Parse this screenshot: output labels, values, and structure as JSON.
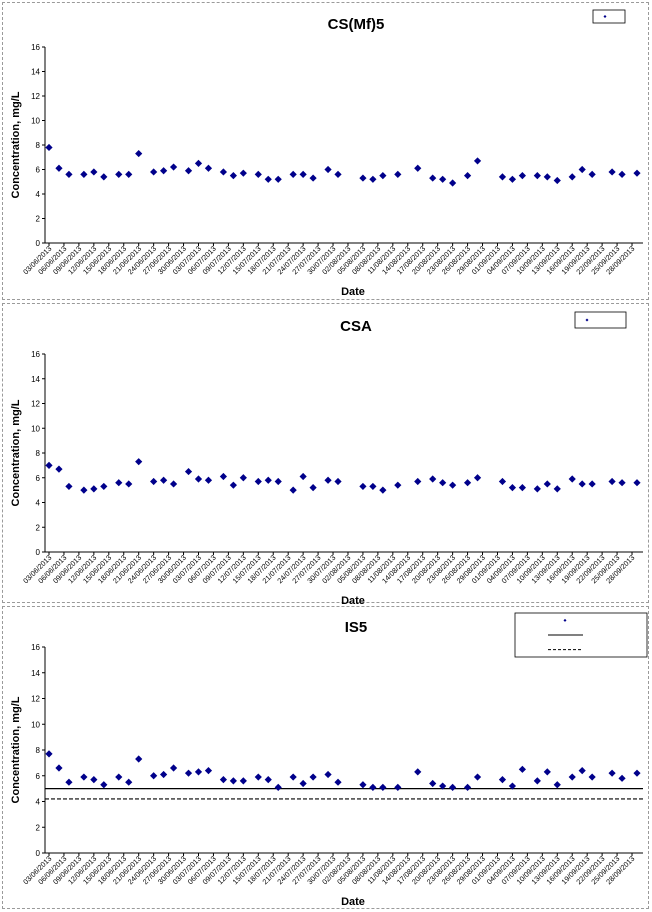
{
  "chart_data": [
    {
      "type": "scatter",
      "title": "CS(Mf)5",
      "xlabel": "Date",
      "ylabel": "Concentration, mg/L",
      "ylim": [
        0,
        16
      ],
      "yticks": [
        0,
        2,
        4,
        6,
        8,
        10,
        12,
        14,
        16
      ],
      "x_range": [
        "03/06/2013",
        "29/09/2013"
      ],
      "xticks": [
        "03/06/2013",
        "06/06/2013",
        "09/06/2013",
        "12/06/2013",
        "15/06/2013",
        "18/06/2013",
        "21/06/2013",
        "24/06/2013",
        "27/06/2013",
        "30/06/2013",
        "03/07/2013",
        "06/07/2013",
        "09/07/2013",
        "12/07/2013",
        "15/07/2013",
        "18/07/2013",
        "21/07/2013",
        "24/07/2013",
        "27/07/2013",
        "30/07/2013",
        "02/08/2013",
        "05/08/2013",
        "08/08/2013",
        "11/08/2013",
        "14/08/2013",
        "17/08/2013",
        "20/08/2013",
        "23/08/2013",
        "26/08/2013",
        "29/08/2013",
        "01/09/2013",
        "04/09/2013",
        "07/09/2013",
        "10/09/2013",
        "13/09/2013",
        "16/09/2013",
        "19/09/2013",
        "22/09/2013",
        "25/09/2013",
        "28/09/2013"
      ],
      "grid": false,
      "legend_position": "top-right",
      "marker_color": "#00008B",
      "series": [
        {
          "marker": "diamond",
          "x": [
            "03/06/2013",
            "05/06/2013",
            "07/06/2013",
            "10/06/2013",
            "12/06/2013",
            "14/06/2013",
            "17/06/2013",
            "19/06/2013",
            "21/06/2013",
            "24/06/2013",
            "26/06/2013",
            "28/06/2013",
            "01/07/2013",
            "03/07/2013",
            "05/07/2013",
            "08/07/2013",
            "10/07/2013",
            "12/07/2013",
            "15/07/2013",
            "17/07/2013",
            "19/07/2013",
            "22/07/2013",
            "24/07/2013",
            "26/07/2013",
            "29/07/2013",
            "31/07/2013",
            "05/08/2013",
            "07/08/2013",
            "09/08/2013",
            "12/08/2013",
            "16/08/2013",
            "19/08/2013",
            "21/08/2013",
            "23/08/2013",
            "26/08/2013",
            "28/08/2013",
            "02/09/2013",
            "04/09/2013",
            "06/09/2013",
            "09/09/2013",
            "11/09/2013",
            "13/09/2013",
            "16/09/2013",
            "18/09/2013",
            "20/09/2013",
            "24/09/2013",
            "26/09/2013",
            "29/09/2013"
          ],
          "y": [
            7.8,
            6.1,
            5.6,
            5.6,
            5.8,
            5.4,
            5.6,
            5.6,
            7.3,
            5.8,
            5.9,
            6.2,
            5.9,
            6.5,
            6.1,
            5.8,
            5.5,
            5.7,
            5.6,
            5.2,
            5.2,
            5.6,
            5.6,
            5.3,
            6.0,
            5.6,
            5.3,
            5.2,
            5.5,
            5.6,
            6.1,
            5.3,
            5.2,
            4.9,
            5.5,
            6.7,
            5.4,
            5.2,
            5.5,
            5.5,
            5.4,
            5.1,
            5.4,
            6.0,
            5.6,
            5.8,
            5.6,
            5.7
          ]
        }
      ]
    },
    {
      "type": "scatter",
      "title": "CSA",
      "xlabel": "Date",
      "ylabel": "Concentration, mg/L",
      "ylim": [
        0,
        16
      ],
      "yticks": [
        0,
        2,
        4,
        6,
        8,
        10,
        12,
        14,
        16
      ],
      "x_range": [
        "03/06/2013",
        "29/09/2013"
      ],
      "xticks": [
        "03/06/2013",
        "06/06/2013",
        "09/06/2013",
        "12/06/2013",
        "15/06/2013",
        "18/06/2013",
        "21/06/2013",
        "24/06/2013",
        "27/06/2013",
        "30/06/2013",
        "03/07/2013",
        "06/07/2013",
        "09/07/2013",
        "12/07/2013",
        "15/07/2013",
        "18/07/2013",
        "21/07/2013",
        "24/07/2013",
        "27/07/2013",
        "30/07/2013",
        "02/08/2013",
        "05/08/2013",
        "08/08/2013",
        "11/08/2013",
        "14/08/2013",
        "17/08/2013",
        "20/08/2013",
        "23/08/2013",
        "26/08/2013",
        "29/08/2013",
        "01/09/2013",
        "04/09/2013",
        "07/09/2013",
        "10/09/2013",
        "13/09/2013",
        "16/09/2013",
        "19/09/2013",
        "22/09/2013",
        "25/09/2013",
        "28/09/2013"
      ],
      "grid": false,
      "legend_position": "top-right",
      "marker_color": "#00008B",
      "series": [
        {
          "marker": "diamond",
          "x": [
            "03/06/2013",
            "05/06/2013",
            "07/06/2013",
            "10/06/2013",
            "12/06/2013",
            "14/06/2013",
            "17/06/2013",
            "19/06/2013",
            "21/06/2013",
            "24/06/2013",
            "26/06/2013",
            "28/06/2013",
            "01/07/2013",
            "03/07/2013",
            "05/07/2013",
            "08/07/2013",
            "10/07/2013",
            "12/07/2013",
            "15/07/2013",
            "17/07/2013",
            "19/07/2013",
            "22/07/2013",
            "24/07/2013",
            "26/07/2013",
            "29/07/2013",
            "31/07/2013",
            "05/08/2013",
            "07/08/2013",
            "09/08/2013",
            "12/08/2013",
            "16/08/2013",
            "19/08/2013",
            "21/08/2013",
            "23/08/2013",
            "26/08/2013",
            "28/08/2013",
            "02/09/2013",
            "04/09/2013",
            "06/09/2013",
            "09/09/2013",
            "11/09/2013",
            "13/09/2013",
            "16/09/2013",
            "18/09/2013",
            "20/09/2013",
            "24/09/2013",
            "26/09/2013",
            "29/09/2013"
          ],
          "y": [
            7.0,
            6.7,
            5.3,
            5.0,
            5.1,
            5.3,
            5.6,
            5.5,
            7.3,
            5.7,
            5.8,
            5.5,
            6.5,
            5.9,
            5.8,
            6.1,
            5.4,
            6.0,
            5.7,
            5.8,
            5.7,
            5.0,
            6.1,
            5.2,
            5.8,
            5.7,
            5.3,
            5.3,
            5.0,
            5.4,
            5.7,
            5.9,
            5.6,
            5.4,
            5.6,
            6.0,
            5.7,
            5.2,
            5.2,
            5.1,
            5.5,
            5.1,
            5.9,
            5.5,
            5.5,
            5.7,
            5.6,
            5.6
          ]
        }
      ]
    },
    {
      "type": "scatter",
      "title": "IS5",
      "xlabel": "Date",
      "ylabel": "Concentration, mg/L",
      "ylim": [
        0,
        16
      ],
      "yticks": [
        0,
        2,
        4,
        6,
        8,
        10,
        12,
        14,
        16
      ],
      "x_range": [
        "03/06/2013",
        "29/09/2013"
      ],
      "xticks": [
        "03/06/2013",
        "06/06/2013",
        "09/06/2013",
        "12/06/2013",
        "15/06/2013",
        "18/06/2013",
        "21/06/2013",
        "24/06/2013",
        "27/06/2013",
        "30/06/2013",
        "03/07/2013",
        "06/07/2013",
        "09/07/2013",
        "12/07/2013",
        "15/07/2013",
        "18/07/2013",
        "21/07/2013",
        "24/07/2013",
        "27/07/2013",
        "30/07/2013",
        "02/08/2013",
        "05/08/2013",
        "08/08/2013",
        "11/08/2013",
        "14/08/2013",
        "17/08/2013",
        "20/08/2013",
        "23/08/2013",
        "26/08/2013",
        "29/08/2013",
        "01/09/2013",
        "04/09/2013",
        "07/09/2013",
        "10/09/2013",
        "13/09/2013",
        "16/09/2013",
        "19/09/2013",
        "22/09/2013",
        "25/09/2013",
        "28/09/2013"
      ],
      "grid": false,
      "legend_position": "top-right",
      "marker_color": "#00008B",
      "reference_lines": [
        {
          "style": "solid",
          "y": 5.0
        },
        {
          "style": "dashed",
          "y": 4.2
        }
      ],
      "series": [
        {
          "marker": "diamond",
          "x": [
            "03/06/2013",
            "05/06/2013",
            "07/06/2013",
            "10/06/2013",
            "12/06/2013",
            "14/06/2013",
            "17/06/2013",
            "19/06/2013",
            "21/06/2013",
            "24/06/2013",
            "26/06/2013",
            "28/06/2013",
            "01/07/2013",
            "03/07/2013",
            "05/07/2013",
            "08/07/2013",
            "10/07/2013",
            "12/07/2013",
            "15/07/2013",
            "17/07/2013",
            "19/07/2013",
            "22/07/2013",
            "24/07/2013",
            "26/07/2013",
            "29/07/2013",
            "31/07/2013",
            "05/08/2013",
            "07/08/2013",
            "09/08/2013",
            "12/08/2013",
            "16/08/2013",
            "19/08/2013",
            "21/08/2013",
            "23/08/2013",
            "26/08/2013",
            "28/08/2013",
            "02/09/2013",
            "04/09/2013",
            "06/09/2013",
            "09/09/2013",
            "11/09/2013",
            "13/09/2013",
            "16/09/2013",
            "18/09/2013",
            "20/09/2013",
            "24/09/2013",
            "26/09/2013",
            "29/09/2013"
          ],
          "y": [
            7.7,
            6.6,
            5.5,
            5.9,
            5.7,
            5.3,
            5.9,
            5.5,
            7.3,
            6.0,
            6.1,
            6.6,
            6.2,
            6.3,
            6.4,
            5.7,
            5.6,
            5.6,
            5.9,
            5.7,
            5.1,
            5.9,
            5.4,
            5.9,
            6.1,
            5.5,
            5.3,
            5.1,
            5.1,
            5.1,
            6.3,
            5.4,
            5.2,
            5.1,
            5.1,
            5.9,
            5.7,
            5.2,
            6.5,
            5.6,
            6.3,
            5.3,
            5.9,
            6.4,
            5.9,
            6.2,
            5.8,
            6.2
          ]
        }
      ]
    }
  ]
}
